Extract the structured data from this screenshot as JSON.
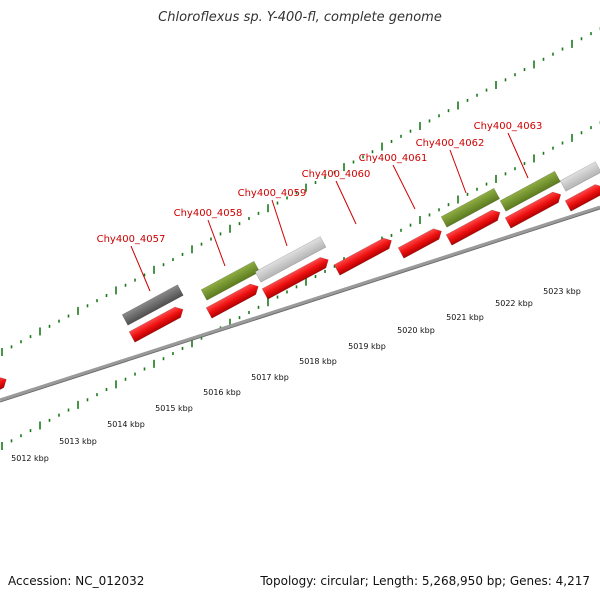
{
  "title": "Chloroflexus sp. Y-400-fl, complete genome",
  "footer": {
    "accession": "Accession: NC_012032",
    "info": "Topology: circular; Length: 5,268,950 bp; Genes: 4,217"
  },
  "scale_unit": "kbp",
  "scale_ticks": [
    5012,
    5013,
    5014,
    5015,
    5016,
    5017,
    5018,
    5019,
    5020,
    5021,
    5022,
    5023
  ],
  "gene_labels": [
    "Chy400_4057",
    "Chy400_4058",
    "Chy400_4059",
    "Chy400_4060",
    "Chy400_4061",
    "Chy400_4062",
    "Chy400_4063"
  ],
  "colors": {
    "gene_label": "#cc0000",
    "cds": "#ee1111",
    "feature_green": "#6f8f2a",
    "feature_grey": "#c4c4c4",
    "feature_dark": "#606060",
    "tick": "#1a7a1a",
    "backbone": "#8a8a8a"
  }
}
